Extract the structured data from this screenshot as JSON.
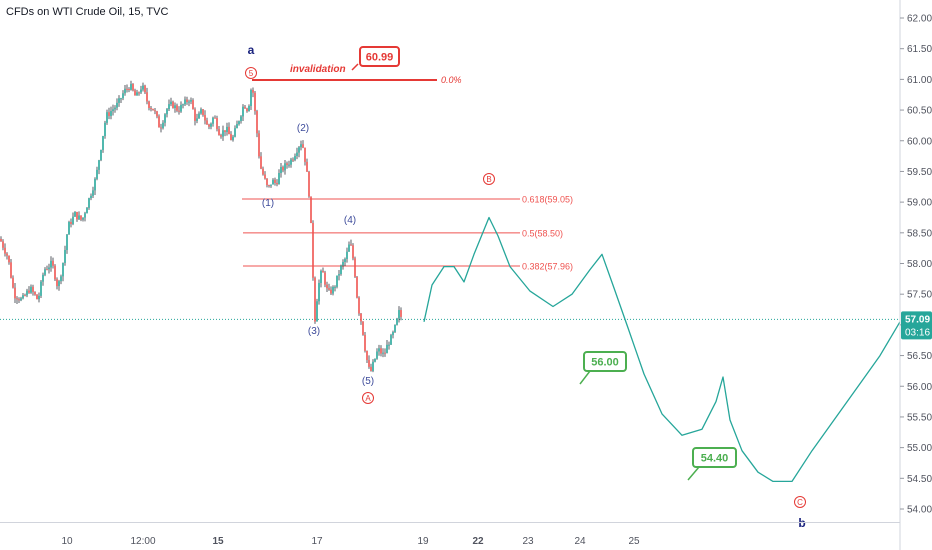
{
  "chart_data": {
    "type": "line",
    "title": "CFDs on WTI Crude Oil, 15, TVC",
    "y_ticks": [
      "62.00",
      "61.50",
      "61.00",
      "60.50",
      "60.00",
      "59.50",
      "59.00",
      "58.50",
      "58.00",
      "57.50",
      "57.00",
      "56.50",
      "56.00",
      "55.50",
      "55.00",
      "54.50",
      "54.00"
    ],
    "ylim": [
      53.8,
      62.2
    ],
    "x_ticks": [
      {
        "label": "10",
        "bold": false
      },
      {
        "label": "12:00",
        "bold": false
      },
      {
        "label": "15",
        "bold": true
      },
      {
        "label": "17",
        "bold": false
      },
      {
        "label": "19",
        "bold": false
      },
      {
        "label": "22",
        "bold": true
      },
      {
        "label": "23",
        "bold": false
      },
      {
        "label": "24",
        "bold": false
      },
      {
        "label": "25",
        "bold": false
      }
    ],
    "current_price": {
      "value": 57.09,
      "label": "57.09",
      "timer": "03:16"
    },
    "invalidation": {
      "text": "invalidation",
      "price_label": "60.99",
      "level": 60.99,
      "fib_label": "0.0%"
    },
    "fib_levels": [
      {
        "label": "0.618(59.05)",
        "value": 59.05
      },
      {
        "label": "0.5(58.50)",
        "value": 58.5
      },
      {
        "label": "0.382(57.96)",
        "value": 57.96
      }
    ],
    "targets": [
      {
        "label": "56.00",
        "value": 56.0
      },
      {
        "label": "54.40",
        "value": 54.4
      }
    ],
    "wave_labels": {
      "a": "a",
      "b": "b",
      "five_circled": "5",
      "A_circled": "A",
      "B_circled": "B",
      "C_circled": "C",
      "w1": "(1)",
      "w2": "(2)",
      "w3": "(3)",
      "w4": "(4)",
      "w5": "(5)"
    },
    "colors": {
      "up": "#26a69a",
      "down": "#ef5350",
      "candle_wick": "#131722",
      "fib": "#ef5350",
      "invalidation": "#e53935",
      "projection": "#26a69a",
      "target": "#4caf50",
      "price_line": "#26a69a",
      "wave_blue": "#1a237e",
      "wave_red": "#e53935"
    },
    "price_path": [
      [
        0,
        58.4
      ],
      [
        8,
        58.1
      ],
      [
        14,
        57.5
      ],
      [
        22,
        57.4
      ],
      [
        30,
        57.6
      ],
      [
        38,
        57.4
      ],
      [
        44,
        57.9
      ],
      [
        52,
        58.0
      ],
      [
        58,
        57.6
      ],
      [
        64,
        58.1
      ],
      [
        68,
        58.6
      ],
      [
        75,
        58.8
      ],
      [
        82,
        58.7
      ],
      [
        90,
        59.1
      ],
      [
        96,
        59.4
      ],
      [
        100,
        59.8
      ],
      [
        106,
        60.4
      ],
      [
        112,
        60.5
      ],
      [
        118,
        60.6
      ],
      [
        124,
        60.8
      ],
      [
        130,
        60.9
      ],
      [
        136,
        60.7
      ],
      [
        142,
        60.9
      ],
      [
        148,
        60.6
      ],
      [
        154,
        60.5
      ],
      [
        160,
        60.2
      ],
      [
        166,
        60.5
      ],
      [
        172,
        60.6
      ],
      [
        178,
        60.5
      ],
      [
        184,
        60.6
      ],
      [
        190,
        60.7
      ],
      [
        196,
        60.3
      ],
      [
        202,
        60.5
      ],
      [
        208,
        60.2
      ],
      [
        214,
        60.4
      ],
      [
        220,
        60.1
      ],
      [
        226,
        60.2
      ],
      [
        232,
        60.0
      ],
      [
        238,
        60.3
      ],
      [
        244,
        60.6
      ],
      [
        248,
        60.5
      ],
      [
        252,
        60.95
      ],
      [
        256,
        60.3
      ],
      [
        260,
        59.6
      ],
      [
        264,
        59.4
      ],
      [
        268,
        59.2
      ],
      [
        272,
        59.35
      ],
      [
        276,
        59.3
      ],
      [
        280,
        59.5
      ],
      [
        286,
        59.6
      ],
      [
        292,
        59.7
      ],
      [
        298,
        59.9
      ],
      [
        302,
        60.0
      ],
      [
        306,
        59.6
      ],
      [
        310,
        59.0
      ],
      [
        313,
        57.8
      ],
      [
        315,
        57.1
      ],
      [
        318,
        57.6
      ],
      [
        322,
        57.9
      ],
      [
        328,
        57.5
      ],
      [
        334,
        57.6
      ],
      [
        340,
        57.9
      ],
      [
        346,
        58.1
      ],
      [
        350,
        58.35
      ],
      [
        354,
        58.0
      ],
      [
        358,
        57.3
      ],
      [
        362,
        57.0
      ],
      [
        366,
        56.5
      ],
      [
        370,
        56.2
      ],
      [
        374,
        56.4
      ],
      [
        378,
        56.6
      ],
      [
        384,
        56.5
      ],
      [
        388,
        56.7
      ],
      [
        392,
        56.8
      ],
      [
        396,
        57.0
      ],
      [
        399,
        57.2
      ],
      [
        402,
        57.1
      ]
    ],
    "projection_path": [
      [
        424,
        57.05
      ],
      [
        432,
        57.65
      ],
      [
        444,
        57.95
      ],
      [
        454,
        57.95
      ],
      [
        464,
        57.7
      ],
      [
        474,
        58.15
      ],
      [
        489,
        58.75
      ],
      [
        498,
        58.45
      ],
      [
        510,
        57.95
      ],
      [
        530,
        57.55
      ],
      [
        553,
        57.3
      ],
      [
        572,
        57.5
      ],
      [
        590,
        57.9
      ],
      [
        602,
        58.15
      ],
      [
        614,
        57.6
      ],
      [
        628,
        56.95
      ],
      [
        644,
        56.2
      ],
      [
        662,
        55.55
      ],
      [
        682,
        55.2
      ],
      [
        702,
        55.3
      ],
      [
        716,
        55.75
      ],
      [
        723,
        56.15
      ],
      [
        730,
        55.45
      ],
      [
        742,
        54.95
      ],
      [
        758,
        54.6
      ],
      [
        773,
        54.45
      ],
      [
        792,
        54.45
      ],
      [
        812,
        54.95
      ],
      [
        834,
        55.45
      ],
      [
        856,
        55.95
      ],
      [
        880,
        56.5
      ],
      [
        900,
        57.05
      ]
    ]
  }
}
